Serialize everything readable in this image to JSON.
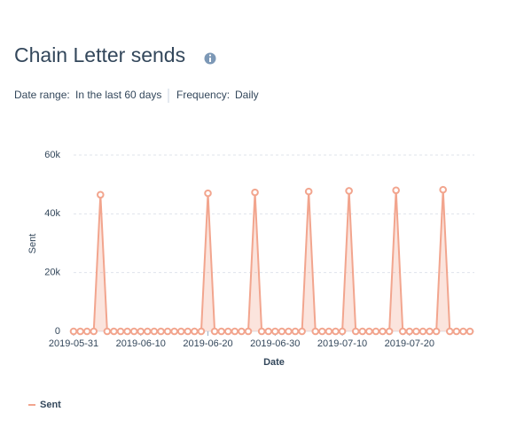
{
  "chart_data": {
    "type": "line",
    "title": "Chain Letter sends",
    "filters": [
      {
        "label": "Date range:",
        "value": "In the last 60 days"
      },
      {
        "label": "Frequency:",
        "value": "Daily"
      }
    ],
    "x_label": "Date",
    "y_label": "Sent",
    "x": [
      "2019-05-31",
      "2019-06-01",
      "2019-06-02",
      "2019-06-03",
      "2019-06-04",
      "2019-06-05",
      "2019-06-06",
      "2019-06-07",
      "2019-06-08",
      "2019-06-09",
      "2019-06-10",
      "2019-06-11",
      "2019-06-12",
      "2019-06-13",
      "2019-06-14",
      "2019-06-15",
      "2019-06-16",
      "2019-06-17",
      "2019-06-18",
      "2019-06-19",
      "2019-06-20",
      "2019-06-21",
      "2019-06-22",
      "2019-06-23",
      "2019-06-24",
      "2019-06-25",
      "2019-06-26",
      "2019-06-27",
      "2019-06-28",
      "2019-06-29",
      "2019-06-30",
      "2019-07-01",
      "2019-07-02",
      "2019-07-03",
      "2019-07-04",
      "2019-07-05",
      "2019-07-06",
      "2019-07-07",
      "2019-07-08",
      "2019-07-09",
      "2019-07-10",
      "2019-07-11",
      "2019-07-12",
      "2019-07-13",
      "2019-07-14",
      "2019-07-15",
      "2019-07-16",
      "2019-07-17",
      "2019-07-18",
      "2019-07-19",
      "2019-07-20",
      "2019-07-21",
      "2019-07-22",
      "2019-07-23",
      "2019-07-24",
      "2019-07-25",
      "2019-07-26",
      "2019-07-27",
      "2019-07-28",
      "2019-07-29"
    ],
    "series": [
      {
        "name": "Sent",
        "color": "#f2a58e",
        "values": [
          0,
          0,
          0,
          0,
          46500,
          0,
          0,
          0,
          0,
          0,
          0,
          0,
          0,
          0,
          0,
          0,
          0,
          0,
          0,
          0,
          47000,
          0,
          0,
          0,
          0,
          0,
          0,
          47300,
          0,
          0,
          0,
          0,
          0,
          0,
          0,
          47600,
          0,
          0,
          0,
          0,
          0,
          47800,
          0,
          0,
          0,
          0,
          0,
          0,
          48000,
          0,
          0,
          0,
          0,
          0,
          0,
          48200,
          0,
          0,
          0,
          0
        ]
      }
    ],
    "xlim": [
      "2019-05-31",
      "2019-07-29"
    ],
    "xticks": [
      "2019-05-31",
      "2019-06-10",
      "2019-06-20",
      "2019-06-30",
      "2019-07-10",
      "2019-07-20"
    ],
    "ylim": [
      0,
      60000
    ],
    "yticks": [
      0,
      {
        "value": 20000,
        "label": "20k"
      },
      {
        "value": 40000,
        "label": "40k"
      },
      {
        "value": 60000,
        "label": "60k"
      }
    ],
    "grid": true
  }
}
